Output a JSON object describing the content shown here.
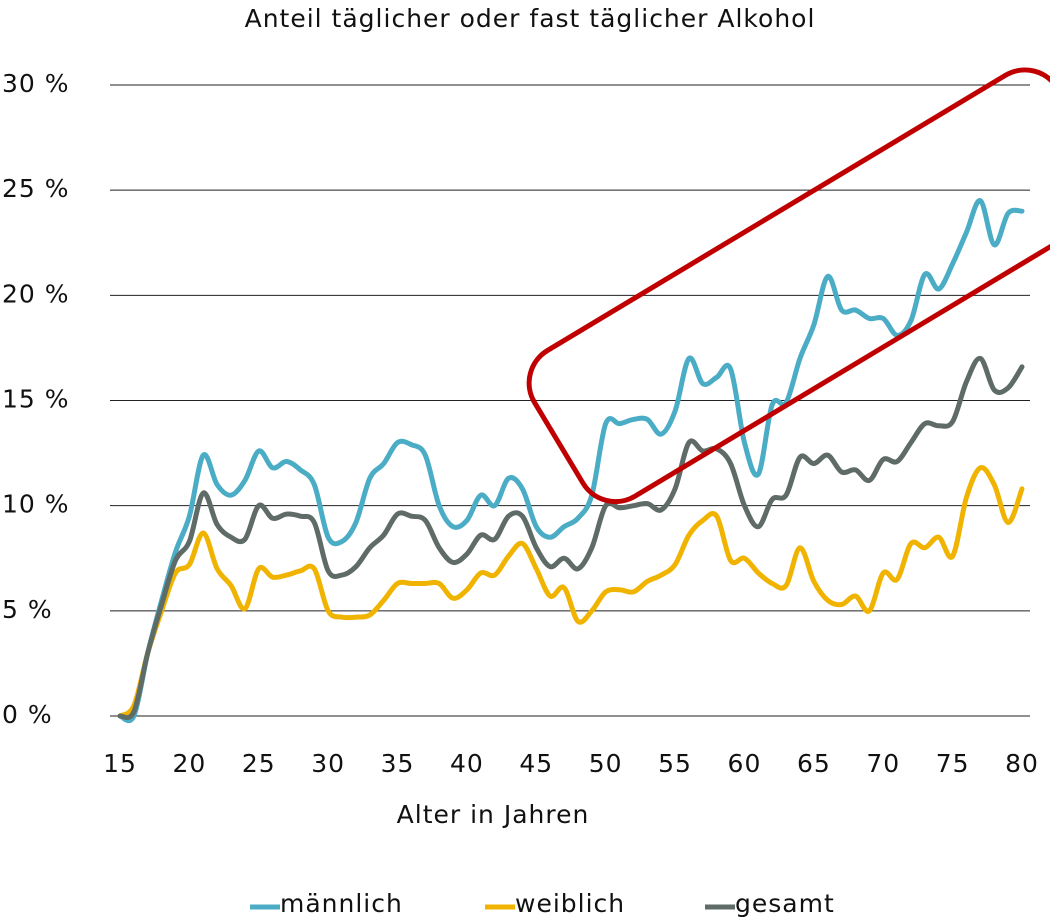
{
  "chart_data": {
    "type": "line",
    "title": "Anteil täglicher oder fast täglicher Alkohol",
    "xlabel": "Alter in Jahren",
    "x": [
      15,
      16,
      17,
      18,
      19,
      20,
      21,
      22,
      23,
      24,
      25,
      26,
      27,
      28,
      29,
      30,
      31,
      32,
      33,
      34,
      35,
      36,
      37,
      38,
      39,
      40,
      41,
      42,
      43,
      44,
      45,
      46,
      47,
      48,
      49,
      50,
      51,
      52,
      53,
      54,
      55,
      56,
      57,
      58,
      59,
      60,
      61,
      62,
      63,
      64,
      65,
      66,
      67,
      68,
      69,
      70,
      71,
      72,
      73,
      74,
      75,
      76,
      77,
      78,
      79,
      80
    ],
    "series": [
      {
        "name": "männlich",
        "color": "#4bacc6",
        "values": [
          0,
          0,
          3,
          5.5,
          7.8,
          9.5,
          12.4,
          11,
          10.5,
          11.2,
          12.6,
          11.8,
          12.1,
          11.7,
          11,
          8.5,
          8.3,
          9.2,
          11.3,
          12,
          13,
          12.9,
          12.4,
          10,
          9,
          9.3,
          10.5,
          10,
          11.3,
          10.8,
          9,
          8.5,
          9,
          9.4,
          10.5,
          13.9,
          13.9,
          14.1,
          14.1,
          13.4,
          14.5,
          17,
          15.8,
          16.1,
          16.5,
          13,
          11.5,
          14.8,
          14.9,
          17,
          18.6,
          20.9,
          19.3,
          19.3,
          18.9,
          18.9,
          18.1,
          18.8,
          21,
          20.3,
          21.5,
          23,
          24.5,
          22.4,
          23.9,
          24
        ]
      },
      {
        "name": "weiblich",
        "color": "#f0b400",
        "values": [
          0,
          0.5,
          3,
          5,
          6.8,
          7.2,
          8.7,
          7,
          6.2,
          5.1,
          7,
          6.6,
          6.7,
          6.9,
          7,
          5,
          4.7,
          4.7,
          4.8,
          5.5,
          6.3,
          6.3,
          6.3,
          6.3,
          5.6,
          6,
          6.8,
          6.7,
          7.6,
          8.2,
          7,
          5.7,
          6.1,
          4.5,
          5,
          5.9,
          6,
          5.9,
          6.4,
          6.7,
          7.2,
          8.6,
          9.3,
          9.5,
          7.4,
          7.5,
          6.8,
          6.3,
          6.2,
          8,
          6.4,
          5.5,
          5.3,
          5.7,
          5,
          6.8,
          6.5,
          8.2,
          8,
          8.5,
          7.6,
          10.4,
          11.8,
          11,
          9.2,
          10.8
        ]
      },
      {
        "name": "gesamt",
        "color": "#5f6b66",
        "values": [
          0,
          0.2,
          3,
          5.3,
          7.4,
          8.3,
          10.6,
          9.1,
          8.5,
          8.4,
          10,
          9.4,
          9.6,
          9.5,
          9.2,
          6.9,
          6.7,
          7.1,
          8,
          8.6,
          9.6,
          9.5,
          9.3,
          8,
          7.3,
          7.7,
          8.6,
          8.4,
          9.5,
          9.5,
          8,
          7.1,
          7.5,
          7,
          8,
          10,
          9.9,
          10,
          10.1,
          9.8,
          10.8,
          13,
          12.6,
          12.7,
          12,
          10,
          9,
          10.3,
          10.5,
          12.3,
          12,
          12.4,
          11.6,
          11.7,
          11.2,
          12.2,
          12.1,
          13,
          13.9,
          13.8,
          14,
          15.9,
          17,
          15.5,
          15.6,
          16.6
        ]
      }
    ],
    "xlim": [
      15,
      80
    ],
    "xticks": [
      15,
      20,
      25,
      30,
      35,
      40,
      45,
      50,
      55,
      60,
      65,
      70,
      75,
      80
    ],
    "ylim": [
      0,
      30
    ],
    "yticks": [
      {
        "value": 0,
        "label": "0 %"
      },
      {
        "value": 5,
        "label": "5 %"
      },
      {
        "value": 10,
        "label": "10 %"
      },
      {
        "value": 15,
        "label": "15 %"
      },
      {
        "value": 20,
        "label": "20 %"
      },
      {
        "value": 25,
        "label": "25 %"
      },
      {
        "value": 30,
        "label": "30 %"
      }
    ],
    "grid": true,
    "legend": "bottom"
  }
}
